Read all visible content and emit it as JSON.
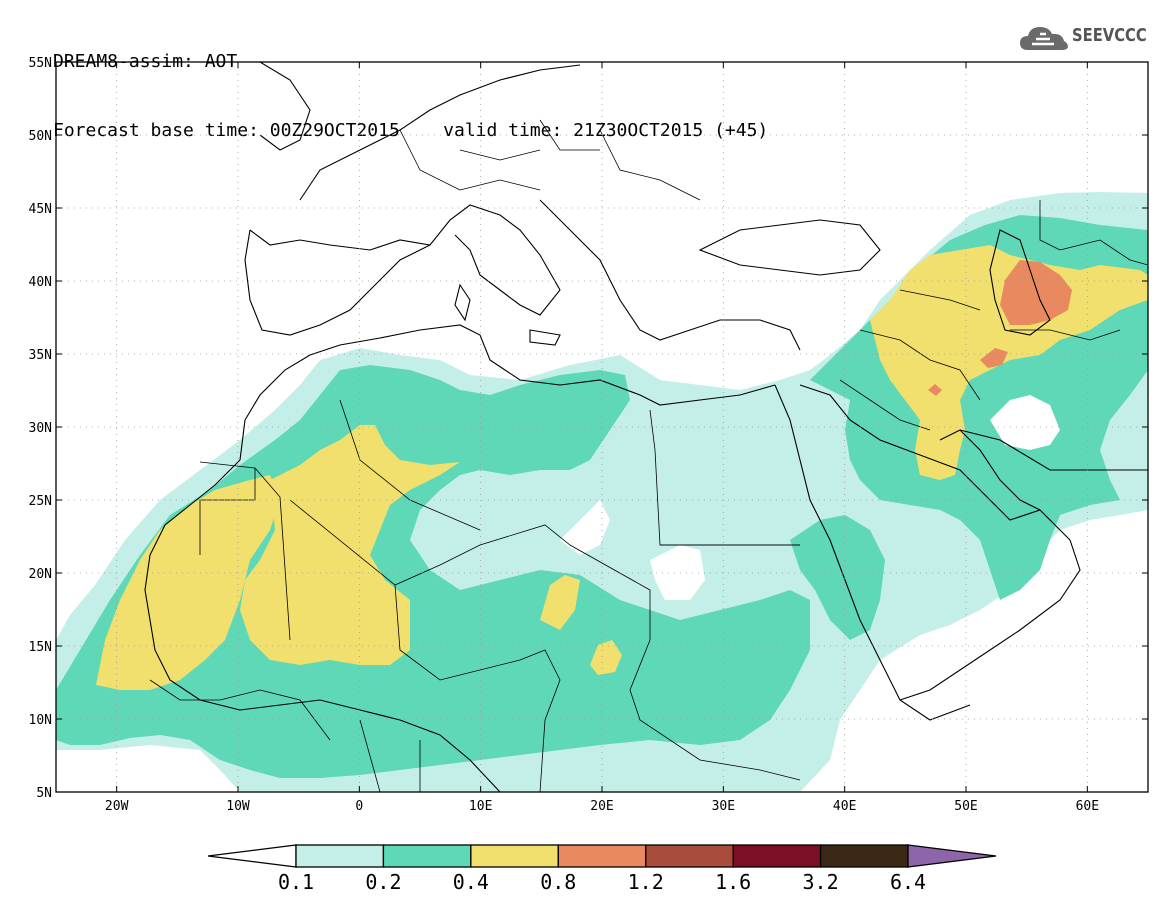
{
  "header": {
    "title": "DREAM8-assim: AOT",
    "base_time_label": "Forecast base time: 00Z29OCT2015",
    "valid_time_label": "valid time: 21Z30OCT2015 (+45)"
  },
  "logo": {
    "text": "SEEVCCC",
    "icon": "cloud-icon"
  },
  "axes": {
    "lon_ticks": [
      {
        "value": -20,
        "label": "20W"
      },
      {
        "value": -10,
        "label": "10W"
      },
      {
        "value": 0,
        "label": "0"
      },
      {
        "value": 10,
        "label": "10E"
      },
      {
        "value": 20,
        "label": "20E"
      },
      {
        "value": 30,
        "label": "30E"
      },
      {
        "value": 40,
        "label": "40E"
      },
      {
        "value": 50,
        "label": "50E"
      },
      {
        "value": 60,
        "label": "60E"
      }
    ],
    "lat_ticks": [
      {
        "value": 55,
        "label": "55N"
      },
      {
        "value": 50,
        "label": "50N"
      },
      {
        "value": 45,
        "label": "45N"
      },
      {
        "value": 40,
        "label": "40N"
      },
      {
        "value": 35,
        "label": "35N"
      },
      {
        "value": 30,
        "label": "30N"
      },
      {
        "value": 25,
        "label": "25N"
      },
      {
        "value": 20,
        "label": "20N"
      },
      {
        "value": 15,
        "label": "15N"
      },
      {
        "value": 10,
        "label": "10N"
      },
      {
        "value": 5,
        "label": "5N"
      }
    ],
    "lon_range": [
      -25,
      65
    ],
    "lat_range": [
      5,
      55
    ],
    "grid": "dotted"
  },
  "colorbar": {
    "labels": [
      "0.1",
      "0.2",
      "0.4",
      "0.8",
      "1.2",
      "1.6",
      "3.2",
      "6.4"
    ],
    "colors": [
      "#ffffff",
      "#c4efe9",
      "#5ed8b6",
      "#f2e06e",
      "#e8895f",
      "#a84c3c",
      "#7b0f26",
      "#3b2915",
      "#8e65a8"
    ]
  }
}
